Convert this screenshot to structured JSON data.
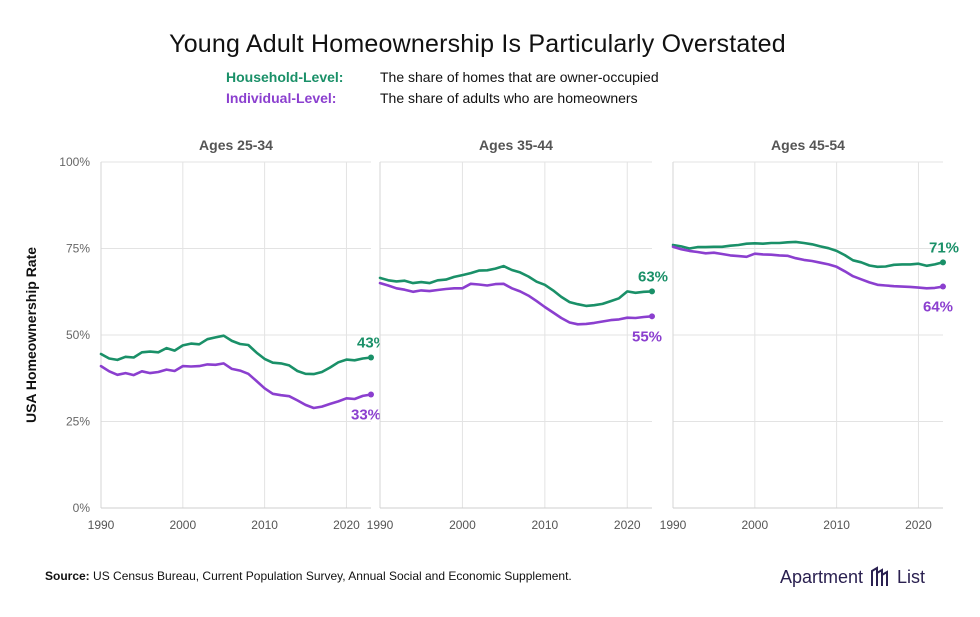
{
  "title": "Young Adult Homeownership Is Particularly Overstated",
  "legend": [
    {
      "label": "Household-Level:",
      "description": "The share of homes that are owner-occupied",
      "color": "#1a9068"
    },
    {
      "label": "Individual-Level:",
      "description": "The share of adults who are homeowners",
      "color": "#8b3fcf"
    }
  ],
  "footer": {
    "source_label": "Source:",
    "source_text": "US Census Bureau, Current Population Survey, Annual Social and Economic Supplement.",
    "brand_left": "Apartment",
    "brand_right": "List",
    "brand_icon": "apartment-list-logo-icon"
  },
  "chart_data": {
    "type": "line",
    "ylabel": "USA Homeownership Rate",
    "ylim": [
      0,
      100
    ],
    "yticks": [
      0,
      25,
      50,
      75,
      100
    ],
    "ytick_labels": [
      "0%",
      "25%",
      "50%",
      "75%",
      "100%"
    ],
    "xlim": [
      1990,
      2023
    ],
    "xticks": [
      1990,
      2000,
      2010,
      2020
    ],
    "grid": true,
    "colors": {
      "household": "#1a9068",
      "individual": "#8b3fcf"
    },
    "x": [
      1990,
      1991,
      1992,
      1993,
      1994,
      1995,
      1996,
      1997,
      1998,
      1999,
      2000,
      2001,
      2002,
      2003,
      2004,
      2005,
      2006,
      2007,
      2008,
      2009,
      2010,
      2011,
      2012,
      2013,
      2014,
      2015,
      2016,
      2017,
      2018,
      2019,
      2020,
      2021,
      2022,
      2023
    ],
    "panels": [
      {
        "title": "Ages 25-34",
        "series": [
          {
            "name": "Household-Level",
            "key": "household",
            "values": [
              44.5,
              43.2,
              42.8,
              43.7,
              43.5,
              45.0,
              45.2,
              45.0,
              46.2,
              45.5,
              47.0,
              47.5,
              47.3,
              48.8,
              49.3,
              49.8,
              48.3,
              47.4,
              47.1,
              44.9,
              43.1,
              42.0,
              41.8,
              41.2,
              39.6,
              38.8,
              38.7,
              39.3,
              40.6,
              42.1,
              42.9,
              42.7,
              43.2,
              43.5
            ]
          },
          {
            "name": "Individual-Level",
            "key": "individual",
            "values": [
              41.0,
              39.5,
              38.5,
              39.0,
              38.4,
              39.5,
              39.0,
              39.3,
              40.0,
              39.6,
              41.0,
              40.9,
              41.0,
              41.5,
              41.4,
              41.8,
              40.2,
              39.7,
              38.8,
              36.7,
              34.6,
              33.0,
              32.6,
              32.3,
              31.1,
              29.8,
              28.9,
              29.3,
              30.1,
              30.8,
              31.7,
              31.5,
              32.4,
              32.8
            ]
          }
        ],
        "end_labels": {
          "household": "43%",
          "individual": "33%"
        }
      },
      {
        "title": "Ages 35-44",
        "series": [
          {
            "name": "Household-Level",
            "key": "household",
            "values": [
              66.5,
              65.8,
              65.5,
              65.7,
              65.0,
              65.3,
              65.0,
              65.8,
              66.0,
              66.8,
              67.3,
              67.9,
              68.6,
              68.7,
              69.2,
              69.9,
              68.8,
              68.1,
              66.9,
              65.4,
              64.5,
              62.9,
              61.0,
              59.5,
              58.9,
              58.4,
              58.6,
              59.0,
              59.8,
              60.6,
              62.6,
              62.2,
              62.5,
              62.6
            ]
          },
          {
            "name": "Individual-Level",
            "key": "individual",
            "values": [
              65.0,
              64.3,
              63.5,
              63.1,
              62.5,
              62.9,
              62.7,
              63.0,
              63.3,
              63.5,
              63.5,
              64.8,
              64.6,
              64.3,
              64.7,
              64.8,
              63.5,
              62.6,
              61.4,
              59.8,
              58.1,
              56.5,
              54.9,
              53.6,
              53.1,
              53.2,
              53.5,
              53.9,
              54.3,
              54.5,
              55.0,
              54.9,
              55.2,
              55.4
            ]
          }
        ],
        "end_labels": {
          "household": "63%",
          "individual": "55%"
        }
      },
      {
        "title": "Ages 45-54",
        "series": [
          {
            "name": "Household-Level",
            "key": "household",
            "values": [
              76.0,
              75.6,
              75.0,
              75.4,
              75.4,
              75.5,
              75.5,
              75.8,
              76.0,
              76.4,
              76.5,
              76.4,
              76.6,
              76.6,
              76.8,
              76.9,
              76.6,
              76.2,
              75.6,
              75.1,
              74.3,
              73.1,
              71.6,
              71.0,
              70.1,
              69.7,
              69.8,
              70.3,
              70.4,
              70.4,
              70.6,
              70.0,
              70.4,
              71.0
            ]
          },
          {
            "name": "Individual-Level",
            "key": "individual",
            "values": [
              75.5,
              74.8,
              74.3,
              74.0,
              73.6,
              73.8,
              73.4,
              73.0,
              72.8,
              72.6,
              73.5,
              73.3,
              73.2,
              73.0,
              72.9,
              72.2,
              71.7,
              71.4,
              70.9,
              70.4,
              69.7,
              68.4,
              67.0,
              66.1,
              65.2,
              64.5,
              64.3,
              64.1,
              64.0,
              63.9,
              63.7,
              63.5,
              63.6,
              64.0
            ]
          }
        ],
        "end_labels": {
          "household": "71%",
          "individual": "64%"
        }
      }
    ]
  }
}
